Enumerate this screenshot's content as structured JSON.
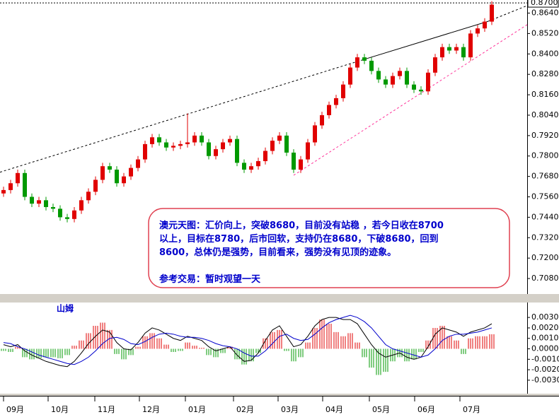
{
  "chart_data": [
    {
      "type": "candlestick",
      "open": [
        0.758,
        0.76,
        0.764,
        0.77,
        0.756,
        0.752,
        0.754,
        0.75,
        0.749,
        0.744,
        0.743,
        0.748,
        0.754,
        0.759,
        0.766,
        0.774,
        0.772,
        0.764,
        0.768,
        0.773,
        0.778,
        0.787,
        0.791,
        0.788,
        0.785,
        0.786,
        0.787,
        0.788,
        0.792,
        0.788,
        0.78,
        0.784,
        0.788,
        0.79,
        0.776,
        0.772,
        0.774,
        0.777,
        0.783,
        0.789,
        0.792,
        0.782,
        0.772,
        0.778,
        0.788,
        0.798,
        0.804,
        0.81,
        0.814,
        0.822,
        0.832,
        0.838,
        0.836,
        0.83,
        0.825,
        0.822,
        0.827,
        0.83,
        0.822,
        0.819,
        0.818,
        0.829,
        0.838,
        0.844,
        0.842,
        0.844,
        0.838,
        0.852,
        0.855,
        0.859
      ],
      "high": [
        0.762,
        0.766,
        0.772,
        0.772,
        0.758,
        0.756,
        0.756,
        0.752,
        0.751,
        0.746,
        0.75,
        0.756,
        0.761,
        0.768,
        0.776,
        0.776,
        0.774,
        0.77,
        0.775,
        0.78,
        0.789,
        0.793,
        0.793,
        0.79,
        0.788,
        0.789,
        0.805,
        0.794,
        0.794,
        0.79,
        0.786,
        0.79,
        0.792,
        0.792,
        0.778,
        0.776,
        0.779,
        0.785,
        0.791,
        0.794,
        0.794,
        0.784,
        0.78,
        0.79,
        0.8,
        0.806,
        0.812,
        0.816,
        0.824,
        0.834,
        0.84,
        0.84,
        0.838,
        0.832,
        0.827,
        0.829,
        0.832,
        0.832,
        0.824,
        0.821,
        0.831,
        0.84,
        0.846,
        0.846,
        0.846,
        0.846,
        0.854,
        0.857,
        0.861,
        0.871
      ],
      "low": [
        0.756,
        0.758,
        0.762,
        0.754,
        0.75,
        0.75,
        0.748,
        0.747,
        0.742,
        0.741,
        0.741,
        0.746,
        0.752,
        0.757,
        0.764,
        0.77,
        0.762,
        0.762,
        0.766,
        0.771,
        0.776,
        0.785,
        0.786,
        0.783,
        0.783,
        0.784,
        0.785,
        0.786,
        0.786,
        0.778,
        0.778,
        0.782,
        0.786,
        0.774,
        0.77,
        0.77,
        0.772,
        0.775,
        0.781,
        0.787,
        0.78,
        0.77,
        0.77,
        0.776,
        0.786,
        0.796,
        0.802,
        0.808,
        0.812,
        0.82,
        0.83,
        0.834,
        0.828,
        0.823,
        0.82,
        0.82,
        0.825,
        0.82,
        0.817,
        0.816,
        0.816,
        0.827,
        0.836,
        0.84,
        0.84,
        0.836,
        0.836,
        0.85,
        0.853,
        0.857
      ],
      "close": [
        0.76,
        0.764,
        0.77,
        0.756,
        0.752,
        0.754,
        0.75,
        0.749,
        0.744,
        0.743,
        0.748,
        0.754,
        0.759,
        0.766,
        0.774,
        0.772,
        0.764,
        0.768,
        0.773,
        0.778,
        0.787,
        0.791,
        0.788,
        0.785,
        0.786,
        0.787,
        0.788,
        0.792,
        0.788,
        0.78,
        0.784,
        0.788,
        0.79,
        0.776,
        0.772,
        0.774,
        0.777,
        0.783,
        0.789,
        0.792,
        0.782,
        0.772,
        0.778,
        0.788,
        0.798,
        0.804,
        0.81,
        0.814,
        0.822,
        0.832,
        0.838,
        0.836,
        0.83,
        0.825,
        0.822,
        0.827,
        0.83,
        0.822,
        0.819,
        0.818,
        0.829,
        0.838,
        0.844,
        0.842,
        0.844,
        0.838,
        0.852,
        0.855,
        0.859,
        0.869
      ],
      "up_color": "#e00000",
      "down_color": "#009900",
      "xlim": [
        -0.5,
        74
      ],
      "ylim": [
        0.6993,
        0.8717
      ],
      "yticks": [
        {
          "value": 0.864,
          "label": "0.8640"
        },
        {
          "value": 0.852,
          "label": "0.8520"
        },
        {
          "value": 0.84,
          "label": "0.8400"
        },
        {
          "value": 0.828,
          "label": "0.8280"
        },
        {
          "value": 0.816,
          "label": "0.8160"
        },
        {
          "value": 0.804,
          "label": "0.8040"
        },
        {
          "value": 0.792,
          "label": "0.7920"
        },
        {
          "value": 0.78,
          "label": "0.7800"
        },
        {
          "value": 0.768,
          "label": "0.7680"
        },
        {
          "value": 0.756,
          "label": "0.7560"
        },
        {
          "value": 0.744,
          "label": "0.7440"
        },
        {
          "value": 0.732,
          "label": "0.7320"
        },
        {
          "value": 0.72,
          "label": "0.7200"
        },
        {
          "value": 0.708,
          "label": "0.7080"
        }
      ],
      "current_price": {
        "value": 0.87,
        "label": "0.8700"
      },
      "trendlines": [
        {
          "x": [
            -0.5,
            50.5
          ],
          "y": [
            0.7705,
            0.8362
          ],
          "color": "#000000",
          "style": "dashed"
        },
        {
          "x": [
            50.5,
            68.5
          ],
          "y": [
            0.8362,
            0.8592
          ],
          "color": "#000000",
          "style": "solid"
        },
        {
          "x": [
            68.5,
            74
          ],
          "y": [
            0.8592,
            0.8684
          ],
          "color": "#000000",
          "style": "dashed"
        },
        {
          "x": [
            41,
            74
          ],
          "y": [
            0.7687,
            0.8572
          ],
          "color": "#ff3399",
          "style": "dashed"
        }
      ],
      "annotation": {
        "lines": [
          "澳元天图：汇价向上，突破8680，目前没有站稳 ，若今日收在8700",
          "以上，目标在8780，后市回软，支持仍在8680，下破8680，回到",
          "8600，总体仍是强势，目前看来，强势没有见顶的迹象。"
        ],
        "trade": "参考交易：暂时观望一天"
      }
    },
    {
      "type": "macd",
      "title": "山姆",
      "histogram": [
        -0.0002,
        -0.0003,
        0.0002,
        -0.0008,
        -0.001,
        -0.0009,
        -0.0008,
        -0.0008,
        -0.0009,
        -0.0006,
        0.0003,
        0.0008,
        0.0015,
        0.0022,
        0.0025,
        0.0018,
        -0.0005,
        -0.001,
        -0.0006,
        0.0002,
        0.0012,
        0.0015,
        0.001,
        0.0004,
        -0.0003,
        -0.0002,
        0.0006,
        0.0003,
        0.0001,
        -0.0006,
        -0.0008,
        -0.0004,
        0.0002,
        -0.001,
        -0.0015,
        -0.0012,
        -0.0004,
        0.001,
        0.0016,
        0.0018,
        -0.0002,
        -0.0012,
        -0.0008,
        0.0006,
        0.002,
        0.0028,
        0.0024,
        0.0016,
        0.0012,
        0.0015,
        0.0006,
        -0.0008,
        -0.0018,
        -0.0025,
        -0.0022,
        -0.0012,
        -0.0008,
        -0.0012,
        -0.001,
        -0.0003,
        0.0008,
        0.002,
        0.0022,
        0.0012,
        0.0008,
        -0.0005,
        0.001,
        0.0012,
        0.0012,
        0.0014
      ],
      "series": [
        {
          "color": "#000000",
          "values": [
            0.0004,
            0.0002,
            0.0004,
            -0.0002,
            -0.0006,
            -0.0009,
            -0.0012,
            -0.0014,
            -0.0016,
            -0.0017,
            -0.0012,
            -0.0004,
            0.0005,
            0.0012,
            0.0018,
            0.0016,
            0.0006,
            0.0,
            -0.0001,
            0.0006,
            0.0015,
            0.002,
            0.0018,
            0.0014,
            0.001,
            0.0008,
            0.0012,
            0.001,
            0.0008,
            0.0002,
            -0.0002,
            0.0,
            0.0002,
            -0.0006,
            -0.0012,
            -0.0011,
            -0.0004,
            0.0008,
            0.0018,
            0.0022,
            0.0012,
            0.0002,
            0.0004,
            0.0012,
            0.0022,
            0.0028,
            0.003,
            0.003,
            0.0028,
            0.0028,
            0.0024,
            0.0014,
            0.0004,
            -0.0004,
            -0.0008,
            -0.0006,
            -0.0004,
            -0.0008,
            -0.001,
            -0.0008,
            0.0002,
            0.0014,
            0.002,
            0.0018,
            0.0016,
            0.0012,
            0.0016,
            0.0018,
            0.002,
            0.0024
          ]
        },
        {
          "color": "#0000cc",
          "values": [
            0.0006,
            0.0005,
            0.0002,
            0.0,
            -0.0003,
            -0.0006,
            -0.0008,
            -0.001,
            -0.0012,
            -0.0014,
            -0.0015,
            -0.0012,
            -0.0008,
            -0.0002,
            0.0005,
            0.001,
            0.0011,
            0.0009,
            0.0005,
            0.0004,
            0.0007,
            0.0011,
            0.0014,
            0.0015,
            0.0014,
            0.0012,
            0.0011,
            0.0011,
            0.001,
            0.0008,
            0.0005,
            0.0003,
            0.0002,
            0.0,
            -0.0004,
            -0.0007,
            -0.0007,
            -0.0002,
            0.0005,
            0.0012,
            0.0014,
            0.001,
            0.0008,
            0.0009,
            0.0014,
            0.002,
            0.0025,
            0.0028,
            0.003,
            0.0032,
            0.003,
            0.0026,
            0.002,
            0.0012,
            0.0004,
            0.0,
            -0.0002,
            -0.0004,
            -0.0006,
            -0.0008,
            -0.0006,
            0.0,
            0.0008,
            0.0012,
            0.0014,
            0.0014,
            0.0015,
            0.0016,
            0.0018,
            0.002
          ]
        }
      ],
      "up_color": "#e00000",
      "down_color": "#009900",
      "xlim": [
        -0.5,
        74
      ],
      "ylim": [
        -0.00429,
        0.00443
      ],
      "yticks": [
        {
          "value": 0.003,
          "label": "0.0030"
        },
        {
          "value": 0.002,
          "label": "0.0020"
        },
        {
          "value": 0.001,
          "label": "0.0010"
        },
        {
          "value": 0,
          "label": "0.0000"
        },
        {
          "value": -0.001,
          "label": "-0.0010"
        },
        {
          "value": -0.002,
          "label": "-0.0020"
        },
        {
          "value": -0.003,
          "label": "-0.0030"
        }
      ],
      "xticks": [
        {
          "value": 0,
          "label": "09月"
        },
        {
          "value": 6.3,
          "label": "10月"
        },
        {
          "value": 12.9,
          "label": "11月"
        },
        {
          "value": 19.2,
          "label": "12月"
        },
        {
          "value": 25.7,
          "label": "01月"
        },
        {
          "value": 32.5,
          "label": "02月"
        },
        {
          "value": 38.8,
          "label": "03月"
        },
        {
          "value": 45.1,
          "label": "04月"
        },
        {
          "value": 51.7,
          "label": "05月"
        },
        {
          "value": 58.1,
          "label": "06月"
        },
        {
          "value": 64.5,
          "label": "07月"
        }
      ]
    }
  ]
}
